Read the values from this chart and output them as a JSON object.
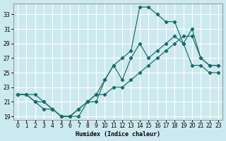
{
  "xlabel": "Humidex (Indice chaleur)",
  "bg_color": "#cce9ef",
  "grid_color": "#ffffff",
  "line_color": "#1a6b6b",
  "x_ticks": [
    0,
    1,
    2,
    3,
    4,
    5,
    6,
    7,
    8,
    9,
    10,
    11,
    12,
    13,
    14,
    15,
    16,
    17,
    18,
    19,
    20,
    21,
    22,
    23
  ],
  "y_ticks": [
    19,
    21,
    23,
    25,
    27,
    29,
    31,
    33
  ],
  "xlim": [
    -0.5,
    23.5
  ],
  "ylim": [
    18.5,
    34.5
  ],
  "line1_x": [
    0,
    1,
    2,
    3,
    4,
    5,
    6,
    7,
    8,
    9,
    10,
    11,
    12,
    13,
    14,
    15,
    16,
    17,
    18,
    19,
    20,
    21,
    22,
    23
  ],
  "line1_y": [
    22,
    22,
    21,
    20,
    20,
    19,
    19,
    19,
    21,
    21,
    24,
    26,
    27,
    28,
    34,
    34,
    33,
    32,
    32,
    29,
    31,
    27,
    26,
    26
  ],
  "line2_x": [
    0,
    2,
    3,
    4,
    5,
    6,
    7,
    8,
    9,
    10,
    11,
    12,
    13,
    14,
    15,
    16,
    17,
    18,
    19,
    20,
    21,
    22,
    23
  ],
  "line2_y": [
    22,
    22,
    21,
    20,
    19,
    19,
    20,
    21,
    22,
    24,
    26,
    24,
    27,
    29,
    27,
    28,
    29,
    30,
    29,
    26,
    26,
    25,
    25
  ],
  "line3_x": [
    0,
    1,
    2,
    3,
    4,
    5,
    6,
    7,
    8,
    9,
    10,
    11,
    12,
    13,
    14,
    15,
    16,
    17,
    18,
    19,
    20,
    21,
    22,
    23
  ],
  "line3_y": [
    22,
    22,
    21,
    21,
    20,
    19,
    19,
    20,
    21,
    22,
    22,
    23,
    23,
    24,
    25,
    26,
    27,
    28,
    29,
    30,
    30,
    27,
    26,
    26
  ]
}
